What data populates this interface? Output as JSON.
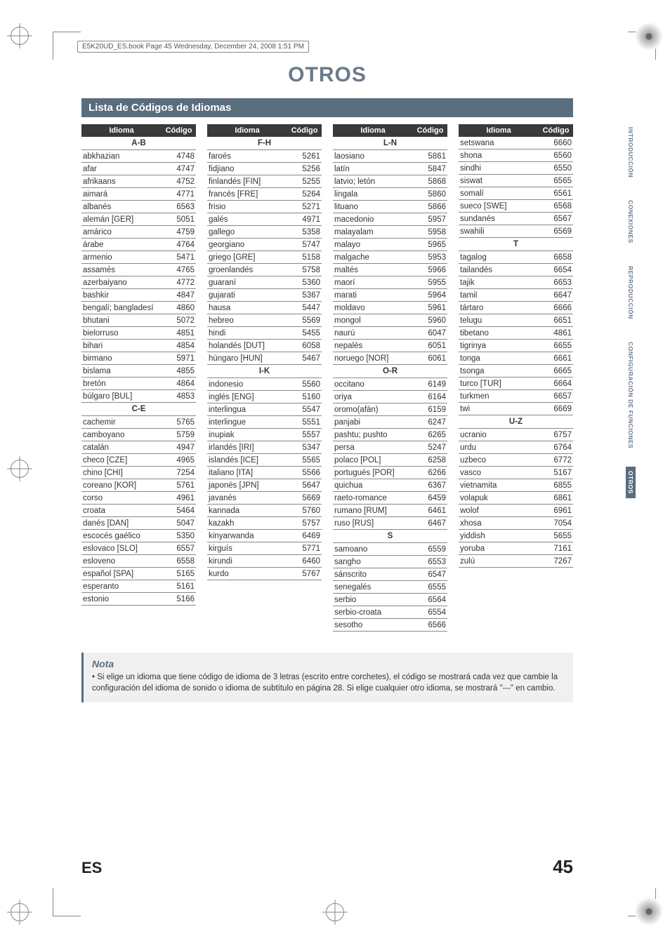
{
  "meta": {
    "header_line": "E5K20UD_ES.book  Page 45  Wednesday, December 24, 2008  1:51 PM"
  },
  "title": "OTROS",
  "section_title": "Lista de Códigos de Idiomas",
  "table_headers": {
    "idioma": "Idioma",
    "codigo": "Código"
  },
  "groups": {
    "ab": "A-B",
    "ce": "C-E",
    "fh": "F-H",
    "ik": "I-K",
    "ln": "L-N",
    "or": "O-R",
    "s": "S",
    "t": "T",
    "uz": "U-Z"
  },
  "col1": [
    {
      "g": "ab"
    },
    {
      "n": "abkhazian",
      "c": "4748"
    },
    {
      "n": "afar",
      "c": "4747"
    },
    {
      "n": "afrikaans",
      "c": "4752"
    },
    {
      "n": "aimará",
      "c": "4771"
    },
    {
      "n": "albanés",
      "c": "6563"
    },
    {
      "n": "alemán [GER]",
      "c": "5051"
    },
    {
      "n": "amárico",
      "c": "4759"
    },
    {
      "n": "árabe",
      "c": "4764"
    },
    {
      "n": "armenio",
      "c": "5471"
    },
    {
      "n": "assamés",
      "c": "4765"
    },
    {
      "n": "azerbaiyano",
      "c": "4772"
    },
    {
      "n": "bashkir",
      "c": "4847"
    },
    {
      "n": "bengalí; bangladesí",
      "c": "4860"
    },
    {
      "n": "bhutani",
      "c": "5072"
    },
    {
      "n": "bielorruso",
      "c": "4851"
    },
    {
      "n": "bihari",
      "c": "4854"
    },
    {
      "n": "birmano",
      "c": "5971"
    },
    {
      "n": "bislama",
      "c": "4855"
    },
    {
      "n": "bretón",
      "c": "4864"
    },
    {
      "n": "búlgaro [BUL]",
      "c": "4853"
    },
    {
      "g": "ce"
    },
    {
      "n": "cachemir",
      "c": "5765"
    },
    {
      "n": "camboyano",
      "c": "5759"
    },
    {
      "n": "catalán",
      "c": "4947"
    },
    {
      "n": "checo [CZE]",
      "c": "4965"
    },
    {
      "n": "chino [CHI]",
      "c": "7254"
    },
    {
      "n": "coreano [KOR]",
      "c": "5761"
    },
    {
      "n": "corso",
      "c": "4961"
    },
    {
      "n": "croata",
      "c": "5464"
    },
    {
      "n": "danés [DAN]",
      "c": "5047"
    },
    {
      "n": "escocés gaélico",
      "c": "5350"
    },
    {
      "n": "eslovaco [SLO]",
      "c": "6557"
    },
    {
      "n": "esloveno",
      "c": "6558"
    },
    {
      "n": "español [SPA]",
      "c": "5165"
    },
    {
      "n": "esperanto",
      "c": "5161"
    },
    {
      "n": "estonio",
      "c": "5166"
    }
  ],
  "col2": [
    {
      "g": "fh"
    },
    {
      "n": "faroés",
      "c": "5261"
    },
    {
      "n": "fidjiano",
      "c": "5256"
    },
    {
      "n": "finlandés [FIN]",
      "c": "5255"
    },
    {
      "n": "francés [FRE]",
      "c": "5264"
    },
    {
      "n": "frisio",
      "c": "5271"
    },
    {
      "n": "galés",
      "c": "4971"
    },
    {
      "n": "gallego",
      "c": "5358"
    },
    {
      "n": "georgiano",
      "c": "5747"
    },
    {
      "n": "griego [GRE]",
      "c": "5158"
    },
    {
      "n": "groenlandés",
      "c": "5758"
    },
    {
      "n": "guaraní",
      "c": "5360"
    },
    {
      "n": "gujarati",
      "c": "5367"
    },
    {
      "n": "hausa",
      "c": "5447"
    },
    {
      "n": "hebreo",
      "c": "5569"
    },
    {
      "n": "hindi",
      "c": "5455"
    },
    {
      "n": "holandés [DUT]",
      "c": "6058"
    },
    {
      "n": "húngaro [HUN]",
      "c": "5467"
    },
    {
      "g": "ik"
    },
    {
      "n": "indonesio",
      "c": "5560"
    },
    {
      "n": "inglés [ENG]",
      "c": "5160"
    },
    {
      "n": "interlingua",
      "c": "5547"
    },
    {
      "n": "interlingue",
      "c": "5551"
    },
    {
      "n": "inupiak",
      "c": "5557"
    },
    {
      "n": "irlandés [IRI]",
      "c": "5347"
    },
    {
      "n": "islandés [ICE]",
      "c": "5565"
    },
    {
      "n": "italiano [ITA]",
      "c": "5566"
    },
    {
      "n": "japonés [JPN]",
      "c": "5647"
    },
    {
      "n": "javanés",
      "c": "5669"
    },
    {
      "n": "kannada",
      "c": "5760"
    },
    {
      "n": "kazakh",
      "c": "5757"
    },
    {
      "n": "kinyarwanda",
      "c": "6469"
    },
    {
      "n": "kirguís",
      "c": "5771"
    },
    {
      "n": "kirundi",
      "c": "6460"
    },
    {
      "n": "kurdo",
      "c": "5767"
    }
  ],
  "col3": [
    {
      "g": "ln"
    },
    {
      "n": "laosiano",
      "c": "5861"
    },
    {
      "n": "latín",
      "c": "5847"
    },
    {
      "n": "latvio; letón",
      "c": "5868"
    },
    {
      "n": "lingala",
      "c": "5860"
    },
    {
      "n": "lituano",
      "c": "5866"
    },
    {
      "n": "macedonio",
      "c": "5957"
    },
    {
      "n": "malayalam",
      "c": "5958"
    },
    {
      "n": "malayo",
      "c": "5965"
    },
    {
      "n": "malgache",
      "c": "5953"
    },
    {
      "n": "maltés",
      "c": "5966"
    },
    {
      "n": "maorí",
      "c": "5955"
    },
    {
      "n": "marati",
      "c": "5964"
    },
    {
      "n": "moldavo",
      "c": "5961"
    },
    {
      "n": "mongol",
      "c": "5960"
    },
    {
      "n": "naurú",
      "c": "6047"
    },
    {
      "n": "nepalés",
      "c": "6051"
    },
    {
      "n": "noruego [NOR]",
      "c": "6061"
    },
    {
      "g": "or"
    },
    {
      "n": "occitano",
      "c": "6149"
    },
    {
      "n": "oriya",
      "c": "6164"
    },
    {
      "n": "oromo(afán)",
      "c": "6159"
    },
    {
      "n": "panjabi",
      "c": "6247"
    },
    {
      "n": "pashtu; pushto",
      "c": "6265"
    },
    {
      "n": "persa",
      "c": "5247"
    },
    {
      "n": "polaco [POL]",
      "c": "6258"
    },
    {
      "n": "portugués [POR]",
      "c": "6266"
    },
    {
      "n": "quichua",
      "c": "6367"
    },
    {
      "n": "raeto-romance",
      "c": "6459"
    },
    {
      "n": "rumano [RUM]",
      "c": "6461"
    },
    {
      "n": "ruso [RUS]",
      "c": "6467"
    },
    {
      "g": "s"
    },
    {
      "n": "samoano",
      "c": "6559"
    },
    {
      "n": "sangho",
      "c": "6553"
    },
    {
      "n": "sánscrito",
      "c": "6547"
    },
    {
      "n": "senegalés",
      "c": "6555"
    },
    {
      "n": "serbio",
      "c": "6564"
    },
    {
      "n": "serbio-croata",
      "c": "6554"
    },
    {
      "n": "sesotho",
      "c": "6566"
    }
  ],
  "col4": [
    {
      "n": "setswana",
      "c": "6660"
    },
    {
      "n": "shona",
      "c": "6560"
    },
    {
      "n": "sindhi",
      "c": "6550"
    },
    {
      "n": "siswat",
      "c": "6565"
    },
    {
      "n": "somalí",
      "c": "6561"
    },
    {
      "n": "sueco [SWE]",
      "c": "6568"
    },
    {
      "n": "sundanés",
      "c": "6567"
    },
    {
      "n": "swahili",
      "c": "6569"
    },
    {
      "g": "t"
    },
    {
      "n": "tagalog",
      "c": "6658"
    },
    {
      "n": "tailandés",
      "c": "6654"
    },
    {
      "n": "tajik",
      "c": "6653"
    },
    {
      "n": "tamil",
      "c": "6647"
    },
    {
      "n": "tártaro",
      "c": "6666"
    },
    {
      "n": "telugu",
      "c": "6651"
    },
    {
      "n": "tibetano",
      "c": "4861"
    },
    {
      "n": "tigrinya",
      "c": "6655"
    },
    {
      "n": "tonga",
      "c": "6661"
    },
    {
      "n": "tsonga",
      "c": "6665"
    },
    {
      "n": "turco [TUR]",
      "c": "6664"
    },
    {
      "n": "turkmen",
      "c": "6657"
    },
    {
      "n": "twi",
      "c": "6669"
    },
    {
      "g": "uz"
    },
    {
      "n": "ucranio",
      "c": "6757"
    },
    {
      "n": "urdu",
      "c": "6764"
    },
    {
      "n": "uzbeco",
      "c": "6772"
    },
    {
      "n": "vasco",
      "c": "5167"
    },
    {
      "n": "vietnamita",
      "c": "6855"
    },
    {
      "n": "volapuk",
      "c": "6861"
    },
    {
      "n": "wolof",
      "c": "6961"
    },
    {
      "n": "xhosa",
      "c": "7054"
    },
    {
      "n": "yiddish",
      "c": "5655"
    },
    {
      "n": "yoruba",
      "c": "7161"
    },
    {
      "n": "zulú",
      "c": "7267"
    }
  ],
  "note": {
    "title": "Nota",
    "body": "Si elige un idioma que tiene código de idioma de 3 letras (escrito entre corchetes), el código se mostrará cada vez que cambie la configuración del idioma de sonido o idioma de subtítulo en página 28. Si elige cualquier otro idioma, se mostrará \"---\" en cambio."
  },
  "footer": {
    "lang": "ES",
    "page": "45"
  },
  "side_tabs": [
    {
      "label": "INTRODUCCIÓN",
      "active": false
    },
    {
      "label": "CONEXIONES",
      "active": false
    },
    {
      "label": "REPRODUCCIÓN",
      "active": false
    },
    {
      "label": "CONFIGURACIÓN DE FUNCIONES",
      "active": false
    },
    {
      "label": "OTROS",
      "active": true
    }
  ],
  "colors": {
    "accent": "#5a6d7d",
    "title": "#6a7a8a",
    "th_bg": "#3a3a3a",
    "row_border": "#888888",
    "note_bg": "#f0f0f0"
  }
}
